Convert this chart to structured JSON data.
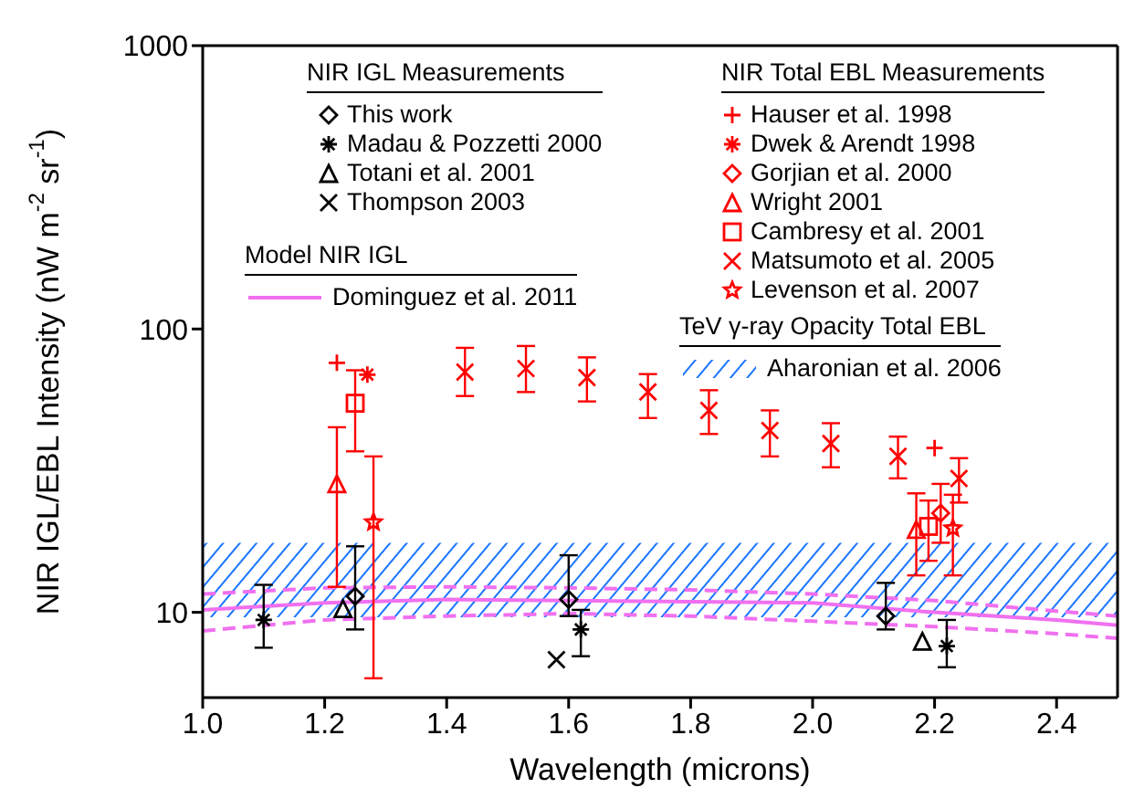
{
  "chart_data": {
    "type": "scatter",
    "xlabel": "Wavelength (microns)",
    "ylabel": "NIR IGL/EBL Intensity (nW m$^{-2}$ sr$^{-1}$)",
    "xlim": [
      1.0,
      2.5
    ],
    "xticks": [
      {
        "value": 1.0,
        "label": "1.0"
      },
      {
        "value": 1.2,
        "label": "1.2"
      },
      {
        "value": 1.4,
        "label": "1.4"
      },
      {
        "value": 1.6,
        "label": "1.6"
      },
      {
        "value": 1.8,
        "label": "1.8"
      },
      {
        "value": 2.0,
        "label": "2.0"
      },
      {
        "value": 2.2,
        "label": "2.2"
      },
      {
        "value": 2.4,
        "label": "2.4"
      }
    ],
    "ylim": [
      5,
      1000
    ],
    "yticks": [
      10,
      100,
      1000
    ],
    "log": "y",
    "legend": "top",
    "annotations": [
      "NIR IGL Measurements",
      "NIR Total EBL Measurements",
      "Model NIR IGL",
      "TeV γ-ray Opacity Total EBL"
    ],
    "bands": [
      {
        "axis": "y",
        "from": 9.6,
        "to": 17.6,
        "label": "Aharonian et al. 2006",
        "color": "#1a75ff"
      }
    ],
    "series": [
      {
        "name": "This work",
        "color": "#000000",
        "marker": "diamond",
        "x": [
          1.25,
          1.6,
          2.12
        ],
        "values": [
          11.4,
          11.1,
          9.7
        ],
        "errors": [
          [
            8.7,
            17.1
          ],
          [
            9.7,
            15.9
          ],
          [
            8.7,
            12.7
          ]
        ]
      },
      {
        "name": "Madau & Pozzetti 2000",
        "color": "#000000",
        "marker": "cross",
        "x": [
          1.1,
          1.62,
          2.22
        ],
        "values": [
          9.4,
          8.7,
          7.6
        ],
        "errors": [
          [
            7.5,
            12.5
          ],
          [
            7.0,
            10.2
          ],
          [
            6.4,
            9.4
          ]
        ]
      },
      {
        "name": "Totani et al. 2001",
        "color": "#000000",
        "marker": "triangle",
        "x": [
          1.23,
          2.18
        ],
        "values": [
          10.3,
          7.9
        ]
      },
      {
        "name": "Thompson 2003",
        "color": "#000000",
        "marker": "x",
        "x": [
          1.58
        ],
        "values": [
          6.8
        ]
      },
      {
        "name": "Hauser et al. 1998",
        "color": "#ff0000",
        "marker": "plus",
        "x": [
          1.22,
          2.2
        ],
        "values": [
          76,
          38
        ]
      },
      {
        "name": "Dwek & Arendt 1998",
        "color": "#ff0000",
        "marker": "cross",
        "x": [
          1.27
        ],
        "values": [
          69
        ]
      },
      {
        "name": "Gorjian et al. 2000",
        "color": "#ff0000",
        "marker": "diamond",
        "x": [
          2.21
        ],
        "values": [
          22.4
        ],
        "errors": [
          [
            17.6,
            28.4
          ]
        ]
      },
      {
        "name": "Wright 2001",
        "color": "#ff0000",
        "marker": "triangle",
        "x": [
          1.22,
          2.17
        ],
        "values": [
          28.4,
          19.6
        ],
        "errors": [
          [
            12.3,
            45
          ],
          [
            13.5,
            26.3
          ]
        ]
      },
      {
        "name": "Cambresy et al. 2001",
        "color": "#ff0000",
        "marker": "square",
        "x": [
          1.25,
          2.19
        ],
        "values": [
          54.7,
          20.1
        ],
        "errors": [
          [
            37,
            71.5
          ],
          [
            15.2,
            24.8
          ]
        ]
      },
      {
        "name": "Matsumoto et al. 2005",
        "color": "#ff0000",
        "marker": "x",
        "x": [
          1.43,
          1.53,
          1.63,
          1.73,
          1.83,
          1.93,
          2.03,
          2.14,
          2.24
        ],
        "values": [
          70.5,
          72.5,
          67.4,
          59.9,
          51.6,
          43.8,
          39.4,
          35.5,
          29.7
        ],
        "errors": [
          [
            58,
            85.8
          ],
          [
            59.9,
            87.1
          ],
          [
            55.5,
            79.4
          ],
          [
            48.5,
            69.3
          ],
          [
            42.6,
            60.8
          ],
          [
            35.5,
            51.6
          ],
          [
            32.5,
            46.5
          ],
          [
            29.7,
            41.7
          ],
          [
            24.4,
            35
          ]
        ]
      },
      {
        "name": "Levenson et al. 2007",
        "color": "#ff0000",
        "marker": "star",
        "x": [
          1.28,
          2.23
        ],
        "values": [
          20.8,
          19.8
        ],
        "errors": [
          [
            5.85,
            35.5
          ],
          [
            13.5,
            26
          ]
        ]
      },
      {
        "name": "Dominguez et al. 2011",
        "type": "line",
        "color": "#f070f0",
        "line_style": "solid",
        "x": [
          1.0,
          1.2,
          1.4,
          1.6,
          1.8,
          2.0,
          2.2,
          2.4,
          2.5
        ],
        "values": [
          10.2,
          10.8,
          11.1,
          11.0,
          10.9,
          10.8,
          10.0,
          9.4,
          9.0
        ]
      },
      {
        "type": "line",
        "color": "#f070f0",
        "line_style": "dashed",
        "x": [
          1.0,
          1.2,
          1.4,
          1.6,
          1.8,
          2.0,
          2.2,
          2.4,
          2.5
        ],
        "values": [
          11.6,
          12.2,
          12.3,
          12.2,
          12.0,
          11.6,
          11.0,
          10.1,
          9.7
        ]
      },
      {
        "type": "line",
        "color": "#f070f0",
        "line_style": "dashed",
        "x": [
          1.0,
          1.2,
          1.4,
          1.6,
          1.8,
          2.0,
          2.2,
          2.4,
          2.5
        ],
        "values": [
          8.6,
          9.4,
          9.7,
          9.9,
          9.7,
          9.3,
          8.9,
          8.4,
          8.1
        ]
      }
    ]
  }
}
